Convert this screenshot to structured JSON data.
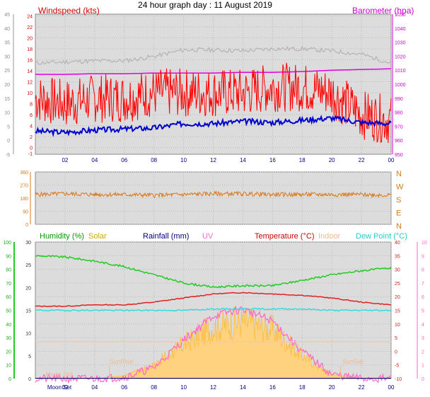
{
  "title": "24 hour graph day : 11 August 2019",
  "x_ticks": [
    "02",
    "04",
    "06",
    "08",
    "10",
    "12",
    "14",
    "16",
    "18",
    "20",
    "22",
    "00"
  ],
  "colors": {
    "windspeed": "#ff0000",
    "wind_avg": "#0000cc",
    "gust": "#b4b4b4",
    "barometer": "#e000e0",
    "direction": "#d87818",
    "humidity": "#22cc22",
    "solar": "#ffbb33",
    "solar_fill": "#ffd27f",
    "rainfall": "#000080",
    "uv": "#ff66cc",
    "temperature": "#dd2222",
    "indoor": "#f4c8a8",
    "dew_point": "#33dddd",
    "plot_bg": "#dcdcdc"
  },
  "chart_data": [
    {
      "type": "line",
      "legend": {
        "windspeed": "Windspeed (kts)",
        "barometer": "Barometer (hpa)"
      },
      "y_left": {
        "ticks": [
          -1,
          0,
          2,
          4,
          6,
          8,
          10,
          12,
          14,
          16,
          18,
          20,
          22,
          24
        ]
      },
      "y_left_outer": {
        "ticks": [
          -5,
          0,
          5,
          10,
          15,
          20,
          25,
          30,
          35,
          40,
          45
        ]
      },
      "y_right": {
        "ticks": [
          950,
          960,
          970,
          980,
          990,
          1000,
          1010,
          1020,
          1030,
          1040,
          1050
        ]
      },
      "x_hours": [
        0,
        2,
        4,
        6,
        8,
        10,
        12,
        14,
        16,
        18,
        20,
        22,
        24
      ],
      "series": [
        {
          "key": "wind_avg",
          "values": [
            3.0,
            2.8,
            3.2,
            3.4,
            3.6,
            4.4,
            4.4,
            4.8,
            4.6,
            5.0,
            5.4,
            4.6,
            4.4
          ]
        },
        {
          "key": "gust",
          "values": [
            15.4,
            15.6,
            15.8,
            15.8,
            16.6,
            17.8,
            17.8,
            17.6,
            18.0,
            18.0,
            17.6,
            17.0,
            15.4
          ]
        },
        {
          "key": "barometer",
          "values": [
            1007,
            1007,
            1007.5,
            1007.5,
            1008,
            1008,
            1008,
            1008.5,
            1008.5,
            1009,
            1010,
            1010.5,
            1011
          ]
        },
        {
          "key": "windspeed",
          "values": [
            9,
            8,
            9,
            9,
            10,
            10,
            10,
            10,
            11,
            11,
            10,
            6,
            5
          ]
        }
      ]
    },
    {
      "type": "line",
      "name": "Wind direction",
      "y_left": {
        "ticks": [
          0,
          90,
          180,
          270,
          360
        ]
      },
      "y_right": {
        "ticks": [
          "N",
          "W",
          "S",
          "E",
          "N"
        ]
      },
      "series": [
        {
          "key": "direction",
          "values": [
            205,
            210,
            205,
            205,
            200,
            205,
            210,
            210,
            205,
            205,
            205,
            205,
            200
          ]
        }
      ]
    },
    {
      "type": "area",
      "legend": {
        "humidity": "Humidity (%)",
        "solar": "Solar",
        "rainfall": "Rainfall (mm)",
        "uv": "UV",
        "temperature": "Temperature (°C)",
        "indoor": "Indoor",
        "dew_point": "Dew Point (°C)"
      },
      "y_outer": {
        "ticks": [
          0,
          10,
          20,
          30,
          40,
          50,
          60,
          70,
          80,
          90,
          100
        ]
      },
      "y_inner": {
        "ticks": [
          0,
          5,
          10,
          15,
          20,
          25,
          30
        ]
      },
      "y_right": {
        "ticks": [
          -10,
          -5,
          0,
          5,
          10,
          15,
          20,
          25,
          30,
          35,
          40
        ]
      },
      "y_right_outer": {
        "ticks": [
          0,
          1,
          2,
          3,
          4,
          5,
          6,
          7,
          8,
          9,
          10
        ]
      },
      "series": [
        {
          "key": "humidity",
          "values": [
            90,
            89,
            86,
            82,
            76,
            70,
            67,
            68,
            68,
            72,
            76,
            79,
            81
          ]
        },
        {
          "key": "indoor",
          "values": [
            27,
            27,
            27,
            27,
            27,
            27,
            27,
            27,
            27,
            27,
            27,
            27,
            27
          ]
        },
        {
          "key": "temperature",
          "values": [
            16.5,
            16.5,
            17,
            17,
            18,
            19.5,
            21,
            21.5,
            21,
            20.5,
            19.5,
            18,
            17
          ]
        },
        {
          "key": "dew_point",
          "values": [
            15,
            15,
            15,
            15,
            15,
            15,
            15.5,
            15.5,
            15.5,
            15.5,
            15,
            15,
            15
          ]
        },
        {
          "key": "uv",
          "values": [
            0,
            0,
            0,
            0.1,
            0.8,
            2.8,
            4.6,
            5.1,
            4.2,
            2.0,
            0.3,
            0,
            0
          ]
        },
        {
          "key": "solar",
          "values": [
            0,
            0,
            0,
            20,
            120,
            300,
            450,
            500,
            430,
            200,
            30,
            0,
            0
          ]
        }
      ],
      "annotations": [
        {
          "text": "SunRise"
        },
        {
          "text": "SunSet"
        },
        {
          "text": "Moon Set"
        }
      ]
    }
  ]
}
